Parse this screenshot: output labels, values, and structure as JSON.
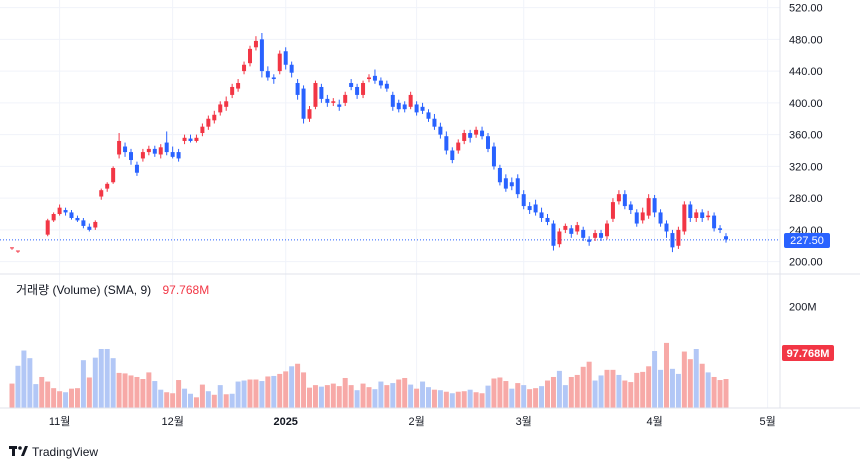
{
  "chart_data": [
    {
      "type": "candlestick",
      "title": "",
      "y_ticks": [
        "200.00",
        "240.00",
        "280.00",
        "320.00",
        "360.00",
        "400.00",
        "440.00",
        "480.00",
        "520.00"
      ],
      "ylim": [
        192,
        522
      ],
      "x_ticks": [
        "11월",
        "12월",
        "2025",
        "2월",
        "3월",
        "4월",
        "5월"
      ],
      "last_price_label": "227.50",
      "last_price": 227.5,
      "grid": true,
      "colors": {
        "up": "#f23645",
        "down": "#2962ff",
        "up_vol": "#f7a9a7",
        "down_vol": "#b2c7f6",
        "last": "#2962ff",
        "vol_badge": "#f23645"
      },
      "candles": [
        [
          0,
          218,
          218,
          218,
          215
        ],
        [
          1,
          214,
          214,
          214,
          211
        ],
        [
          6,
          234,
          252,
          254,
          232
        ],
        [
          7,
          252,
          260,
          262,
          250
        ],
        [
          8,
          260,
          268,
          272,
          258
        ],
        [
          9,
          265,
          262,
          268,
          258
        ],
        [
          10,
          262,
          255,
          265,
          253
        ],
        [
          11,
          255,
          252,
          258,
          250
        ],
        [
          12,
          252,
          245,
          255,
          242
        ],
        [
          13,
          244,
          240,
          248,
          238
        ],
        [
          14,
          243,
          250,
          252,
          240
        ],
        [
          15,
          282,
          290,
          292,
          278
        ],
        [
          16,
          292,
          298,
          300,
          288
        ],
        [
          17,
          300,
          318,
          320,
          298
        ],
        [
          18,
          335,
          352,
          362,
          330
        ],
        [
          19,
          345,
          338,
          350,
          332
        ],
        [
          20,
          338,
          328,
          342,
          322
        ],
        [
          21,
          322,
          312,
          326,
          308
        ],
        [
          22,
          330,
          338,
          342,
          326
        ],
        [
          23,
          338,
          342,
          346,
          334
        ],
        [
          24,
          342,
          336,
          346,
          332
        ],
        [
          25,
          335,
          344,
          348,
          330
        ],
        [
          26,
          350,
          338,
          364,
          334
        ],
        [
          27,
          338,
          332,
          345,
          330
        ],
        [
          28,
          338,
          330,
          342,
          326
        ],
        [
          29,
          352,
          356,
          360,
          348
        ],
        [
          30,
          355,
          352,
          360,
          350
        ],
        [
          31,
          352,
          356,
          360,
          350
        ],
        [
          32,
          362,
          370,
          374,
          358
        ],
        [
          33,
          370,
          380,
          384,
          366
        ],
        [
          34,
          378,
          385,
          390,
          374
        ],
        [
          35,
          388,
          398,
          402,
          384
        ],
        [
          36,
          395,
          402,
          408,
          390
        ],
        [
          37,
          410,
          420,
          424,
          406
        ],
        [
          38,
          418,
          425,
          430,
          414
        ],
        [
          39,
          440,
          448,
          452,
          436
        ],
        [
          40,
          450,
          468,
          472,
          446
        ],
        [
          41,
          470,
          478,
          484,
          466
        ],
        [
          42,
          480,
          440,
          488,
          432
        ],
        [
          43,
          440,
          432,
          446,
          428
        ],
        [
          44,
          432,
          430,
          436,
          424
        ],
        [
          45,
          440,
          462,
          466,
          436
        ],
        [
          46,
          465,
          448,
          470,
          442
        ],
        [
          47,
          448,
          438,
          452,
          432
        ],
        [
          48,
          425,
          410,
          430,
          404
        ],
        [
          49,
          418,
          380,
          422,
          374
        ],
        [
          50,
          380,
          392,
          396,
          376
        ],
        [
          51,
          395,
          425,
          428,
          392
        ],
        [
          52,
          420,
          405,
          424,
          400
        ],
        [
          53,
          405,
          400,
          410,
          395
        ],
        [
          54,
          400,
          402,
          406,
          396
        ],
        [
          55,
          398,
          395,
          404,
          390
        ],
        [
          56,
          400,
          410,
          414,
          396
        ],
        [
          57,
          425,
          420,
          430,
          416
        ],
        [
          58,
          420,
          410,
          424,
          405
        ],
        [
          59,
          410,
          425,
          428,
          406
        ],
        [
          60,
          430,
          432,
          436,
          426
        ],
        [
          61,
          434,
          428,
          442,
          424
        ],
        [
          62,
          428,
          422,
          432,
          418
        ],
        [
          63,
          424,
          418,
          428,
          414
        ],
        [
          64,
          410,
          395,
          414,
          390
        ],
        [
          65,
          400,
          392,
          404,
          388
        ],
        [
          66,
          398,
          392,
          402,
          388
        ],
        [
          67,
          395,
          410,
          414,
          392
        ],
        [
          68,
          398,
          388,
          402,
          384
        ],
        [
          69,
          395,
          390,
          400,
          386
        ],
        [
          70,
          388,
          380,
          392,
          376
        ],
        [
          71,
          380,
          370,
          386,
          366
        ],
        [
          72,
          370,
          360,
          375,
          355
        ],
        [
          73,
          358,
          340,
          364,
          335
        ],
        [
          74,
          340,
          328,
          344,
          324
        ],
        [
          75,
          340,
          350,
          354,
          336
        ],
        [
          76,
          352,
          362,
          366,
          348
        ],
        [
          77,
          362,
          356,
          366,
          350
        ],
        [
          78,
          360,
          366,
          370,
          356
        ],
        [
          79,
          365,
          358,
          370,
          354
        ],
        [
          80,
          358,
          342,
          362,
          338
        ],
        [
          81,
          345,
          320,
          350,
          316
        ],
        [
          82,
          318,
          300,
          322,
          296
        ],
        [
          83,
          305,
          292,
          310,
          288
        ],
        [
          84,
          300,
          295,
          306,
          290
        ],
        [
          85,
          305,
          285,
          310,
          280
        ],
        [
          86,
          285,
          270,
          290,
          266
        ],
        [
          87,
          270,
          265,
          275,
          260
        ],
        [
          88,
          272,
          262,
          278,
          258
        ],
        [
          89,
          262,
          255,
          268,
          250
        ],
        [
          90,
          255,
          250,
          260,
          246
        ],
        [
          91,
          248,
          220,
          252,
          214
        ],
        [
          92,
          222,
          238,
          242,
          218
        ],
        [
          93,
          240,
          245,
          248,
          236
        ],
        [
          94,
          242,
          235,
          246,
          230
        ],
        [
          95,
          238,
          246,
          250,
          234
        ],
        [
          96,
          240,
          230,
          244,
          226
        ],
        [
          97,
          228,
          225,
          232,
          220
        ],
        [
          98,
          230,
          236,
          240,
          226
        ],
        [
          99,
          236,
          230,
          240,
          226
        ],
        [
          100,
          232,
          248,
          252,
          228
        ],
        [
          101,
          254,
          275,
          280,
          250
        ],
        [
          102,
          276,
          285,
          290,
          272
        ],
        [
          103,
          285,
          270,
          290,
          266
        ],
        [
          104,
          272,
          265,
          276,
          260
        ],
        [
          105,
          262,
          248,
          266,
          244
        ],
        [
          106,
          252,
          262,
          268,
          248
        ],
        [
          107,
          258,
          280,
          285,
          254
        ],
        [
          108,
          280,
          262,
          284,
          256
        ],
        [
          109,
          262,
          248,
          266,
          244
        ],
        [
          110,
          248,
          238,
          252,
          230
        ],
        [
          111,
          236,
          218,
          240,
          212
        ],
        [
          112,
          220,
          240,
          244,
          216
        ],
        [
          113,
          238,
          272,
          276,
          234
        ],
        [
          114,
          272,
          255,
          276,
          250
        ],
        [
          115,
          255,
          262,
          266,
          250
        ],
        [
          116,
          262,
          255,
          266,
          250
        ],
        [
          117,
          256,
          258,
          264,
          252
        ],
        [
          118,
          258,
          242,
          262,
          238
        ],
        [
          119,
          242,
          240,
          246,
          236
        ],
        [
          120,
          232,
          228,
          236,
          224
        ]
      ],
      "volumes": [
        [
          0,
          "up",
          48
        ],
        [
          1,
          "down",
          83
        ],
        [
          2,
          "down",
          113
        ],
        [
          3,
          "down",
          98
        ],
        [
          4,
          "down",
          47
        ],
        [
          5,
          "up",
          61
        ],
        [
          6,
          "up",
          52
        ],
        [
          7,
          "up",
          39
        ],
        [
          8,
          "up",
          33
        ],
        [
          9,
          "down",
          31
        ],
        [
          10,
          "up",
          38
        ],
        [
          11,
          "up",
          39
        ],
        [
          12,
          "down",
          94
        ],
        [
          13,
          "up",
          60
        ],
        [
          14,
          "down",
          99
        ],
        [
          15,
          "down",
          116
        ],
        [
          16,
          "down",
          116
        ],
        [
          17,
          "down",
          98
        ],
        [
          18,
          "up",
          69
        ],
        [
          19,
          "up",
          68
        ],
        [
          20,
          "up",
          64
        ],
        [
          21,
          "up",
          61
        ],
        [
          22,
          "up",
          57
        ],
        [
          23,
          "up",
          70
        ],
        [
          24,
          "down",
          53
        ],
        [
          25,
          "down",
          36
        ],
        [
          26,
          "up",
          31
        ],
        [
          27,
          "up",
          29
        ],
        [
          28,
          "up",
          55
        ],
        [
          29,
          "down",
          38
        ],
        [
          30,
          "down",
          28
        ],
        [
          31,
          "up",
          21
        ],
        [
          32,
          "up",
          46
        ],
        [
          33,
          "down",
          33
        ],
        [
          34,
          "up",
          26
        ],
        [
          35,
          "down",
          45
        ],
        [
          36,
          "up",
          27
        ],
        [
          37,
          "down",
          28
        ],
        [
          38,
          "down",
          52
        ],
        [
          39,
          "down",
          54
        ],
        [
          40,
          "up",
          56
        ],
        [
          41,
          "up",
          56
        ],
        [
          42,
          "down",
          53
        ],
        [
          43,
          "up",
          62
        ],
        [
          44,
          "down",
          63
        ],
        [
          45,
          "up",
          67
        ],
        [
          46,
          "up",
          72
        ],
        [
          47,
          "down",
          82
        ],
        [
          48,
          "up",
          87
        ],
        [
          49,
          "up",
          70
        ],
        [
          50,
          "up",
          40
        ],
        [
          51,
          "up",
          45
        ],
        [
          52,
          "down",
          42
        ],
        [
          53,
          "up",
          45
        ],
        [
          54,
          "up",
          48
        ],
        [
          55,
          "up",
          43
        ],
        [
          56,
          "up",
          59
        ],
        [
          57,
          "up",
          45
        ],
        [
          58,
          "down",
          35
        ],
        [
          59,
          "up",
          48
        ],
        [
          60,
          "up",
          41
        ],
        [
          61,
          "down",
          37
        ],
        [
          62,
          "down",
          52
        ],
        [
          63,
          "up",
          45
        ],
        [
          64,
          "down",
          49
        ],
        [
          65,
          "up",
          56
        ],
        [
          66,
          "up",
          59
        ],
        [
          67,
          "down",
          46
        ],
        [
          68,
          "up",
          38
        ],
        [
          69,
          "down",
          52
        ],
        [
          70,
          "down",
          41
        ],
        [
          71,
          "up",
          36
        ],
        [
          72,
          "down",
          35
        ],
        [
          73,
          "up",
          32
        ],
        [
          74,
          "down",
          29
        ],
        [
          75,
          "up",
          32
        ],
        [
          76,
          "up",
          33
        ],
        [
          77,
          "down",
          36
        ],
        [
          78,
          "up",
          31
        ],
        [
          79,
          "up",
          29
        ],
        [
          80,
          "down",
          44
        ],
        [
          81,
          "up",
          58
        ],
        [
          82,
          "up",
          60
        ],
        [
          83,
          "up",
          53
        ],
        [
          84,
          "down",
          38
        ],
        [
          85,
          "up",
          49
        ],
        [
          86,
          "down",
          45
        ],
        [
          87,
          "up",
          37
        ],
        [
          88,
          "up",
          39
        ],
        [
          89,
          "down",
          43
        ],
        [
          90,
          "up",
          54
        ],
        [
          91,
          "up",
          61
        ],
        [
          92,
          "down",
          73
        ],
        [
          93,
          "down",
          45
        ],
        [
          94,
          "up",
          61
        ],
        [
          95,
          "up",
          65
        ],
        [
          96,
          "up",
          81
        ],
        [
          97,
          "up",
          91
        ],
        [
          98,
          "down",
          54
        ],
        [
          99,
          "down",
          64
        ],
        [
          100,
          "up",
          75
        ],
        [
          101,
          "up",
          75
        ],
        [
          102,
          "down",
          65
        ],
        [
          103,
          "up",
          54
        ],
        [
          104,
          "up",
          51
        ],
        [
          105,
          "up",
          69
        ],
        [
          106,
          "up",
          71
        ],
        [
          107,
          "up",
          82
        ],
        [
          108,
          "down",
          112
        ],
        [
          109,
          "down",
          75
        ],
        [
          110,
          "up",
          128
        ],
        [
          111,
          "down",
          77
        ],
        [
          112,
          "down",
          67
        ],
        [
          113,
          "up",
          111
        ],
        [
          114,
          "up",
          96
        ],
        [
          115,
          "down",
          116
        ],
        [
          116,
          "up",
          87
        ],
        [
          117,
          "down",
          70
        ],
        [
          118,
          "up",
          61
        ],
        [
          119,
          "up",
          55
        ],
        [
          120,
          "up",
          57
        ]
      ],
      "volume_ticks": [
        "200M"
      ],
      "volume_max": 232
    }
  ],
  "legend": {
    "name": "거래량 (Volume) (SMA, 9)",
    "value": "97.768M"
  },
  "volume_badge": "97.768M",
  "branding": {
    "logo_text": "TradingView"
  }
}
